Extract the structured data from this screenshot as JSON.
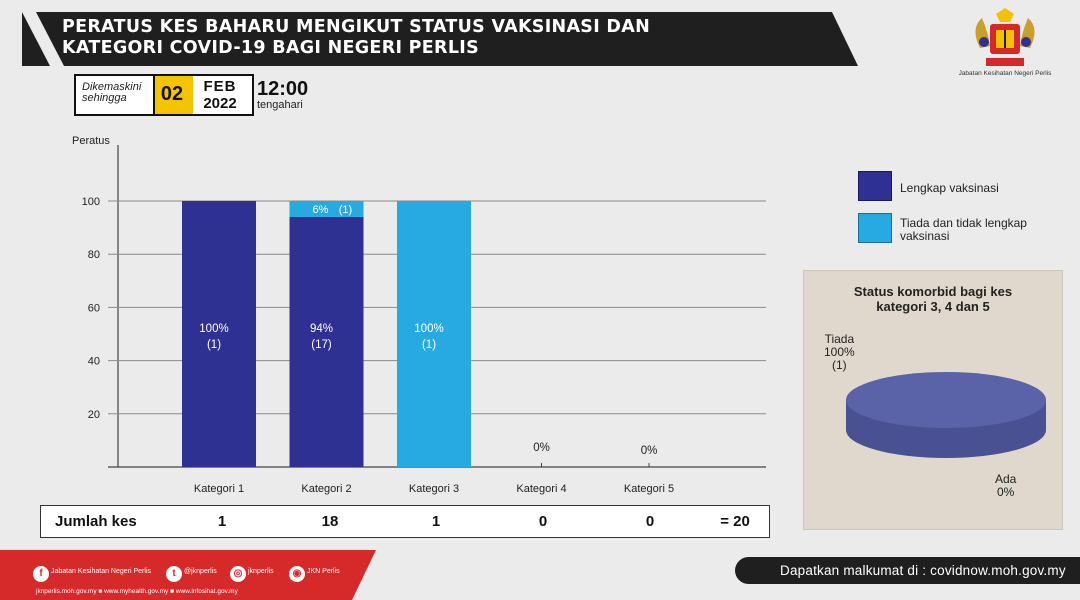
{
  "header": {
    "title_line1": "PERATUS KES BAHARU MENGIKUT STATUS VAKSINASI  DAN",
    "title_line2": "KATEGORI COVID-19 BAGI NEGERI PERLIS",
    "updated_label_1": "Dikemaskini",
    "updated_label_2": "sehingga",
    "day": "02",
    "month": "FEB",
    "year": "2022",
    "time": "12:00",
    "time_suffix": "tengahari",
    "agency": "Jabatan Kesihatan Negeri Perlis"
  },
  "chart_data": [
    {
      "type": "bar",
      "stacked": true,
      "ylabel": "Peratus",
      "ylim": [
        0,
        100
      ],
      "yticks": [
        20,
        40,
        60,
        80,
        100
      ],
      "categories": [
        "Kategori 1",
        "Kategori 2",
        "Kategori 3",
        "Kategori 4",
        "Kategori 5"
      ],
      "series": [
        {
          "name": "Lengkap vaksinasi",
          "color": "#2e3192",
          "values": [
            100,
            94,
            0,
            0,
            0
          ],
          "labels": [
            [
              "100%",
              "(1)"
            ],
            [
              "94%",
              "(17)"
            ],
            null,
            null,
            null
          ]
        },
        {
          "name": "Tiada dan tidak lengkap vaksinasi",
          "color": "#27aae1",
          "values": [
            0,
            6,
            100,
            0,
            0
          ],
          "labels": [
            null,
            [
              "6%",
              "(1)"
            ],
            [
              "100%",
              "(1)"
            ],
            null,
            null
          ]
        }
      ],
      "zero_labels": [
        null,
        null,
        null,
        "0%",
        "0%"
      ],
      "legend": "right",
      "grid": true
    },
    {
      "type": "pie",
      "title_line1": "Status komorbid bagi kes",
      "title_line2": "kategori 3, 4 dan 5",
      "slices": [
        {
          "label": "Tiada",
          "percent": "100%",
          "count": "(1)",
          "value": 100,
          "color": "#4a5192"
        },
        {
          "label": "Ada",
          "percent": "0%",
          "value": 0
        }
      ]
    }
  ],
  "totals": {
    "label": "Jumlah kes",
    "values": [
      "1",
      "18",
      "1",
      "0",
      "0"
    ],
    "grand": "= 20"
  },
  "footer": {
    "social": [
      "Jabatan Kesihatan Negeri Perlis",
      "@jknperlis",
      "jknperlis",
      "JKN Perlis"
    ],
    "sites": "jknperlis.moh.gov.my ■ www.myhealth.gov.my ■ www.infosihat.gov.my",
    "info": "Dapatkan malkumat di : covidnow.moh.gov.my"
  }
}
